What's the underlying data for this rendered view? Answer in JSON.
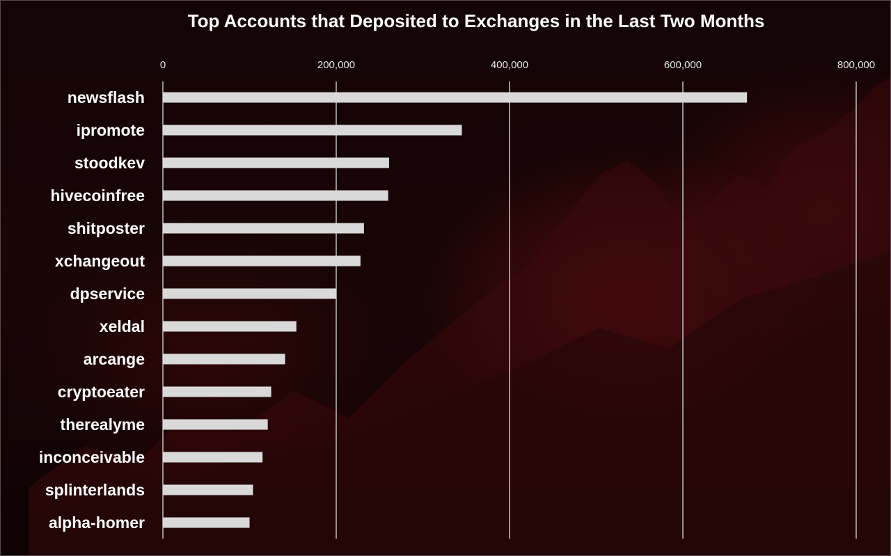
{
  "chart_data": {
    "type": "bar",
    "orientation": "horizontal",
    "title": "Top Accounts that Deposited to Exchanges in the Last Two Months",
    "categories": [
      "newsflash",
      "ipromote",
      "stoodkev",
      "hivecoinfree",
      "shitposter",
      "xchangeout",
      "dpservice",
      "xeldal",
      "arcange",
      "cryptoeater",
      "therealyme",
      "inconceivable",
      "splinterlands",
      "alpha-homer"
    ],
    "values": [
      674000,
      345000,
      261000,
      260000,
      232000,
      228000,
      200000,
      154000,
      141000,
      125000,
      121000,
      115000,
      104000,
      100000
    ],
    "xlim": [
      0,
      800000
    ],
    "xticks": [
      0,
      200000,
      400000,
      600000,
      800000
    ],
    "xtick_labels": [
      "0",
      "200,000",
      "400,000",
      "600,000",
      "800,000"
    ],
    "xlabel": "",
    "ylabel": "",
    "grid": "vertical",
    "bar_color": "#d9d9d9",
    "gridline_color": "#bfbfbf",
    "background_color": "#1a0506",
    "title_color": "#ffffff",
    "label_color": "#ffffff"
  }
}
